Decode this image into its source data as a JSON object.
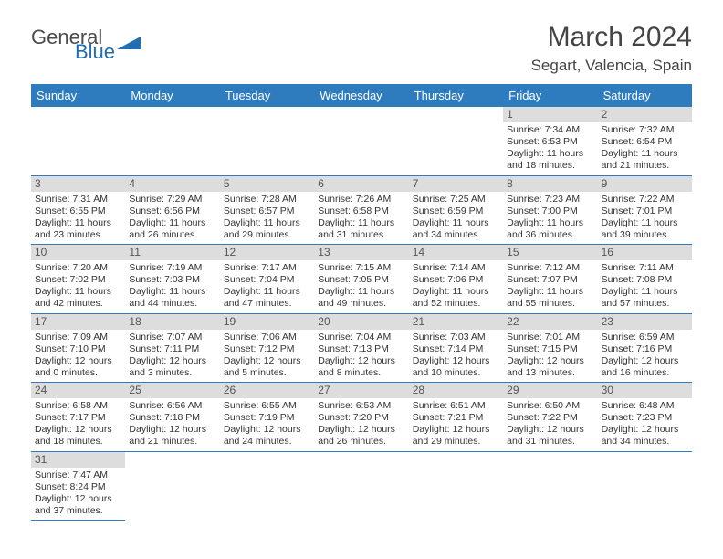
{
  "logo": {
    "word1": "General",
    "word2": "Blue"
  },
  "title": "March 2024",
  "location": "Segart, Valencia, Spain",
  "weekday_labels": [
    "Sunday",
    "Monday",
    "Tuesday",
    "Wednesday",
    "Thursday",
    "Friday",
    "Saturday"
  ],
  "colors": {
    "header_bg": "#2e7bbd",
    "header_fg": "#ffffff",
    "daynum_bg": "#dddddd",
    "cell_border": "#2e7bbd",
    "logo_blue": "#1f6fb2"
  },
  "calendar": {
    "first_weekday_index": 5,
    "days": [
      {
        "n": 1,
        "sunrise": "7:34 AM",
        "sunset": "6:53 PM",
        "daylight": "11 hours and 18 minutes."
      },
      {
        "n": 2,
        "sunrise": "7:32 AM",
        "sunset": "6:54 PM",
        "daylight": "11 hours and 21 minutes."
      },
      {
        "n": 3,
        "sunrise": "7:31 AM",
        "sunset": "6:55 PM",
        "daylight": "11 hours and 23 minutes."
      },
      {
        "n": 4,
        "sunrise": "7:29 AM",
        "sunset": "6:56 PM",
        "daylight": "11 hours and 26 minutes."
      },
      {
        "n": 5,
        "sunrise": "7:28 AM",
        "sunset": "6:57 PM",
        "daylight": "11 hours and 29 minutes."
      },
      {
        "n": 6,
        "sunrise": "7:26 AM",
        "sunset": "6:58 PM",
        "daylight": "11 hours and 31 minutes."
      },
      {
        "n": 7,
        "sunrise": "7:25 AM",
        "sunset": "6:59 PM",
        "daylight": "11 hours and 34 minutes."
      },
      {
        "n": 8,
        "sunrise": "7:23 AM",
        "sunset": "7:00 PM",
        "daylight": "11 hours and 36 minutes."
      },
      {
        "n": 9,
        "sunrise": "7:22 AM",
        "sunset": "7:01 PM",
        "daylight": "11 hours and 39 minutes."
      },
      {
        "n": 10,
        "sunrise": "7:20 AM",
        "sunset": "7:02 PM",
        "daylight": "11 hours and 42 minutes."
      },
      {
        "n": 11,
        "sunrise": "7:19 AM",
        "sunset": "7:03 PM",
        "daylight": "11 hours and 44 minutes."
      },
      {
        "n": 12,
        "sunrise": "7:17 AM",
        "sunset": "7:04 PM",
        "daylight": "11 hours and 47 minutes."
      },
      {
        "n": 13,
        "sunrise": "7:15 AM",
        "sunset": "7:05 PM",
        "daylight": "11 hours and 49 minutes."
      },
      {
        "n": 14,
        "sunrise": "7:14 AM",
        "sunset": "7:06 PM",
        "daylight": "11 hours and 52 minutes."
      },
      {
        "n": 15,
        "sunrise": "7:12 AM",
        "sunset": "7:07 PM",
        "daylight": "11 hours and 55 minutes."
      },
      {
        "n": 16,
        "sunrise": "7:11 AM",
        "sunset": "7:08 PM",
        "daylight": "11 hours and 57 minutes."
      },
      {
        "n": 17,
        "sunrise": "7:09 AM",
        "sunset": "7:10 PM",
        "daylight": "12 hours and 0 minutes."
      },
      {
        "n": 18,
        "sunrise": "7:07 AM",
        "sunset": "7:11 PM",
        "daylight": "12 hours and 3 minutes."
      },
      {
        "n": 19,
        "sunrise": "7:06 AM",
        "sunset": "7:12 PM",
        "daylight": "12 hours and 5 minutes."
      },
      {
        "n": 20,
        "sunrise": "7:04 AM",
        "sunset": "7:13 PM",
        "daylight": "12 hours and 8 minutes."
      },
      {
        "n": 21,
        "sunrise": "7:03 AM",
        "sunset": "7:14 PM",
        "daylight": "12 hours and 10 minutes."
      },
      {
        "n": 22,
        "sunrise": "7:01 AM",
        "sunset": "7:15 PM",
        "daylight": "12 hours and 13 minutes."
      },
      {
        "n": 23,
        "sunrise": "6:59 AM",
        "sunset": "7:16 PM",
        "daylight": "12 hours and 16 minutes."
      },
      {
        "n": 24,
        "sunrise": "6:58 AM",
        "sunset": "7:17 PM",
        "daylight": "12 hours and 18 minutes."
      },
      {
        "n": 25,
        "sunrise": "6:56 AM",
        "sunset": "7:18 PM",
        "daylight": "12 hours and 21 minutes."
      },
      {
        "n": 26,
        "sunrise": "6:55 AM",
        "sunset": "7:19 PM",
        "daylight": "12 hours and 24 minutes."
      },
      {
        "n": 27,
        "sunrise": "6:53 AM",
        "sunset": "7:20 PM",
        "daylight": "12 hours and 26 minutes."
      },
      {
        "n": 28,
        "sunrise": "6:51 AM",
        "sunset": "7:21 PM",
        "daylight": "12 hours and 29 minutes."
      },
      {
        "n": 29,
        "sunrise": "6:50 AM",
        "sunset": "7:22 PM",
        "daylight": "12 hours and 31 minutes."
      },
      {
        "n": 30,
        "sunrise": "6:48 AM",
        "sunset": "7:23 PM",
        "daylight": "12 hours and 34 minutes."
      },
      {
        "n": 31,
        "sunrise": "7:47 AM",
        "sunset": "8:24 PM",
        "daylight": "12 hours and 37 minutes."
      }
    ]
  },
  "labels": {
    "sunrise": "Sunrise:",
    "sunset": "Sunset:",
    "daylight": "Daylight:"
  }
}
